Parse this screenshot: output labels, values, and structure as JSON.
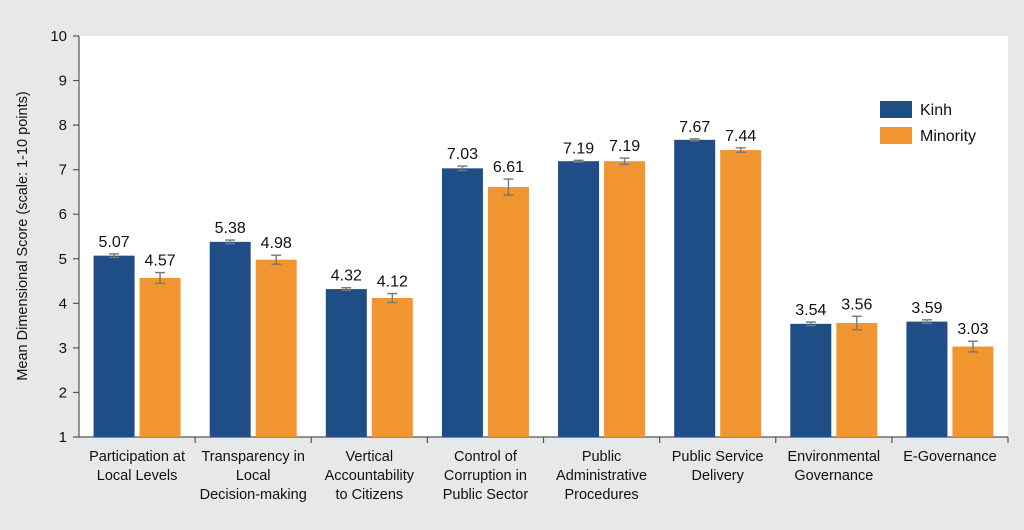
{
  "chart_data": {
    "type": "bar",
    "ylabel": "Mean Dimensional Score (scale: 1-10 points)",
    "ylim": [
      1,
      10
    ],
    "yticks": [
      1,
      2,
      3,
      4,
      5,
      6,
      7,
      8,
      9,
      10
    ],
    "grid": false,
    "legend_position": "top-right",
    "categories": [
      [
        "Participation at",
        "Local Levels"
      ],
      [
        "Transparency in",
        "Local",
        "Decision-making"
      ],
      [
        "Vertical",
        "Accountability",
        "to Citizens"
      ],
      [
        "Control of",
        "Corruption in",
        "Public Sector"
      ],
      [
        "Public",
        "Administrative",
        "Procedures"
      ],
      [
        "Public Service",
        "Delivery"
      ],
      [
        "Environmental",
        "Governance"
      ],
      [
        "E-Governance"
      ]
    ],
    "series": [
      {
        "name": "Kinh",
        "color": "#1f4e87",
        "values": [
          5.07,
          5.38,
          4.32,
          7.03,
          7.19,
          7.67,
          3.54,
          3.59
        ],
        "labels": [
          "5.07",
          "5.38",
          "4.32",
          "7.03",
          "7.19",
          "7.67",
          "3.54",
          "3.59"
        ],
        "err": [
          0.04,
          0.04,
          0.03,
          0.05,
          0.02,
          0.02,
          0.04,
          0.04
        ]
      },
      {
        "name": "Minority",
        "color": "#f0952f",
        "values": [
          4.57,
          4.98,
          4.12,
          6.61,
          7.19,
          7.44,
          3.56,
          3.03
        ],
        "labels": [
          "4.57",
          "4.98",
          "4.12",
          "6.61",
          "7.19",
          "7.44",
          "3.56",
          "3.03"
        ],
        "err": [
          0.12,
          0.1,
          0.1,
          0.18,
          0.07,
          0.05,
          0.15,
          0.12
        ]
      }
    ]
  }
}
